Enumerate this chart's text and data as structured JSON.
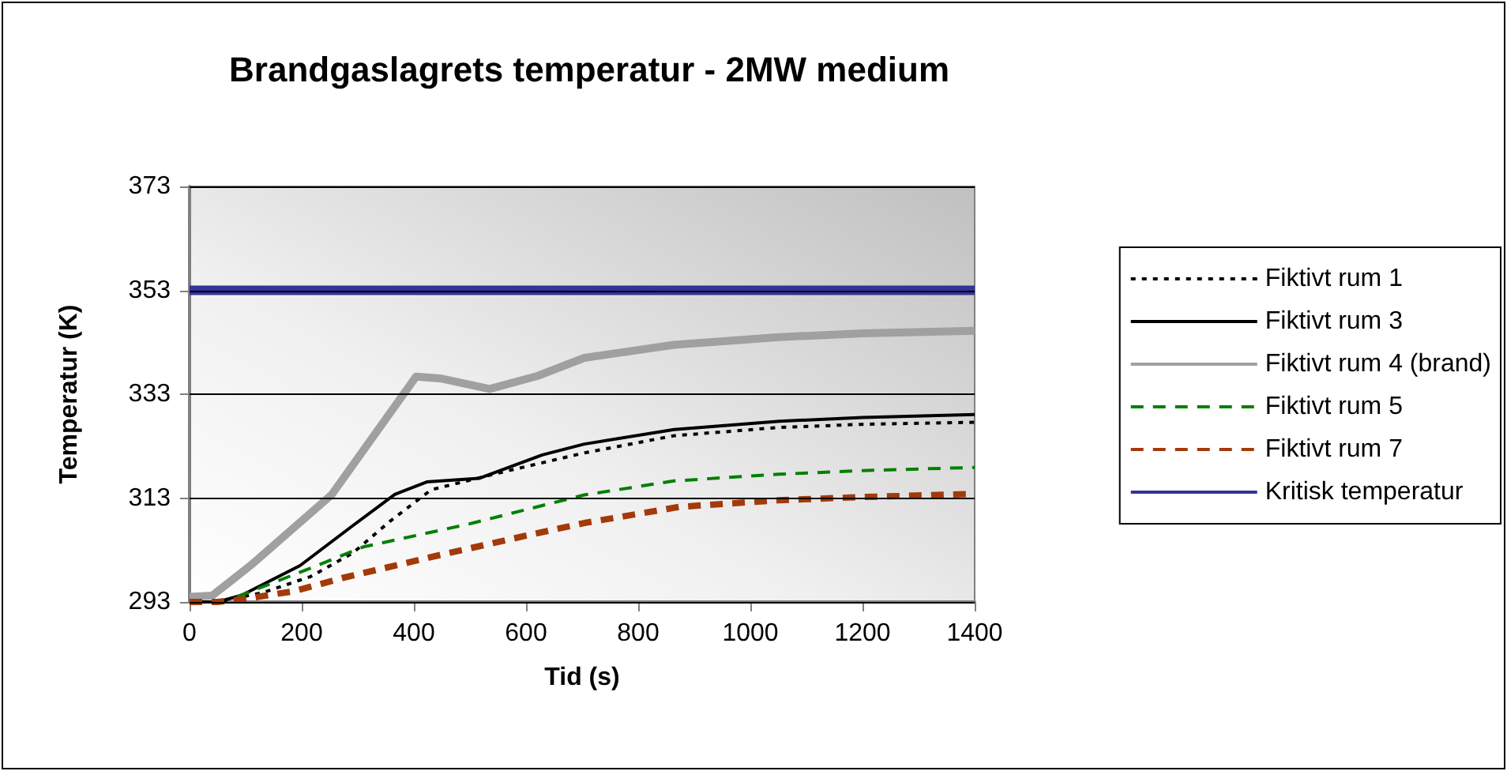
{
  "chart_data": {
    "type": "line",
    "title": "Brandgaslagrets temperatur - 2MW medium",
    "xlabel": "Tid (s)",
    "ylabel": "Temperatur (K)",
    "xlim": [
      0,
      1400
    ],
    "xticks": [
      0,
      200,
      400,
      600,
      800,
      1000,
      1200,
      1400
    ],
    "ylim": [
      293,
      373
    ],
    "yticks": [
      293,
      313,
      333,
      353,
      373
    ],
    "grid": "y",
    "legend": "right",
    "marker": "none",
    "series": [
      {
        "name": "Fiktivt rum 1",
        "color": "#000000",
        "line_style": "dotted",
        "x": [
          0,
          50,
          131,
          216,
          291,
          357,
          431,
          554,
          704,
          864,
          1052,
          1200,
          1400
        ],
        "values": [
          293,
          293,
          294.8,
          297.9,
          302.4,
          308.5,
          314.6,
          317.9,
          321.7,
          325,
          326.6,
          327.2,
          327.6
        ]
      },
      {
        "name": "Fiktivt rum 3",
        "color": "#000000",
        "line_style": "solid",
        "x": [
          0,
          50,
          93,
          197,
          290,
          366,
          423,
          516,
          629,
          704,
          864,
          1052,
          1200,
          1400
        ],
        "values": [
          293,
          293,
          294.3,
          300,
          307.6,
          313.7,
          316.1,
          316.8,
          321.3,
          323.4,
          326.2,
          327.8,
          328.5,
          329.1
        ]
      },
      {
        "name": "Fiktivt rum 4 (brand)",
        "color": "#a0a0a0",
        "line_style": "solid",
        "x": [
          0,
          40,
          65,
          113,
          253,
          404,
          450,
          535,
          620,
          704,
          864,
          1052,
          1200,
          1400
        ],
        "values": [
          294,
          294.2,
          296.3,
          300.4,
          313.6,
          336.4,
          336,
          334,
          336.5,
          340,
          342.5,
          344,
          344.7,
          345.2
        ]
      },
      {
        "name": "Fiktivt rum 5",
        "color": "#008000",
        "line_style": "dashed",
        "x": [
          85,
          225,
          310,
          498,
          704,
          864,
          1052,
          1200,
          1400
        ],
        "values": [
          294,
          299.9,
          303.6,
          308,
          313.6,
          316.3,
          317.6,
          318.3,
          318.9
        ]
      },
      {
        "name": "Fiktivt rum 7",
        "color": "#a33a0a",
        "line_style": "dashed",
        "x": [
          0,
          50,
          93,
          188,
          272,
          441,
          610,
          704,
          873,
          1052,
          1200,
          1400
        ],
        "values": [
          293,
          293,
          293.5,
          295.1,
          297.6,
          301.9,
          306,
          308.2,
          311.3,
          312.6,
          313.2,
          313.8
        ]
      },
      {
        "name": "Kritisk temperatur",
        "color": "#333399",
        "line_style": "solid",
        "x": [
          0,
          1400
        ],
        "values": [
          353,
          353
        ]
      }
    ]
  }
}
